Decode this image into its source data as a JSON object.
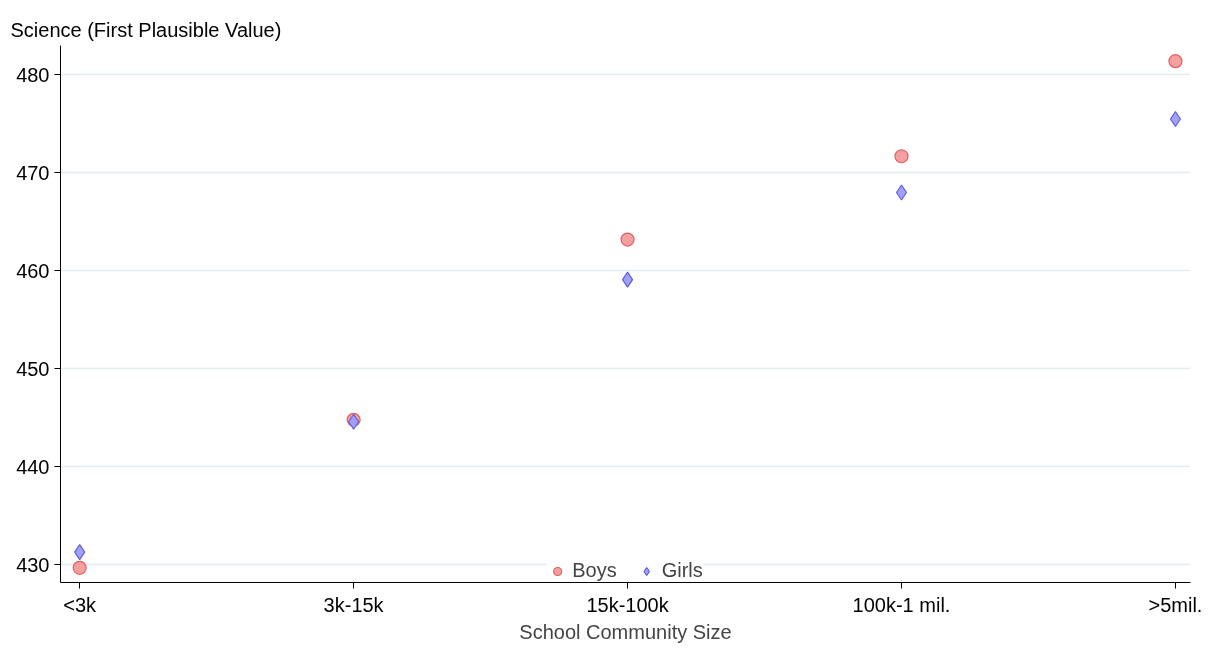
{
  "chart_data": {
    "type": "scatter",
    "ylabel": "Science (First Plausible Value)",
    "xlabel": "School Community Size",
    "categories": [
      "<3k",
      "3k-15k",
      "15k-100k",
      "100k-1 mil.",
      ">5mil."
    ],
    "series": [
      {
        "name": "Boys",
        "color": "#f4a0a0",
        "marker": "circle",
        "values": [
          429.7,
          444.8,
          463.2,
          471.7,
          481.4
        ]
      },
      {
        "name": "Girls",
        "color": "#a0a0f4",
        "marker": "diamond",
        "values": [
          431.3,
          444.6,
          459.1,
          468.0,
          475.5
        ]
      }
    ],
    "ylim": [
      428.2,
      483.0
    ],
    "yticks": [
      430,
      440,
      450,
      460,
      470,
      480
    ],
    "grid": "y",
    "legend": "bottom"
  }
}
